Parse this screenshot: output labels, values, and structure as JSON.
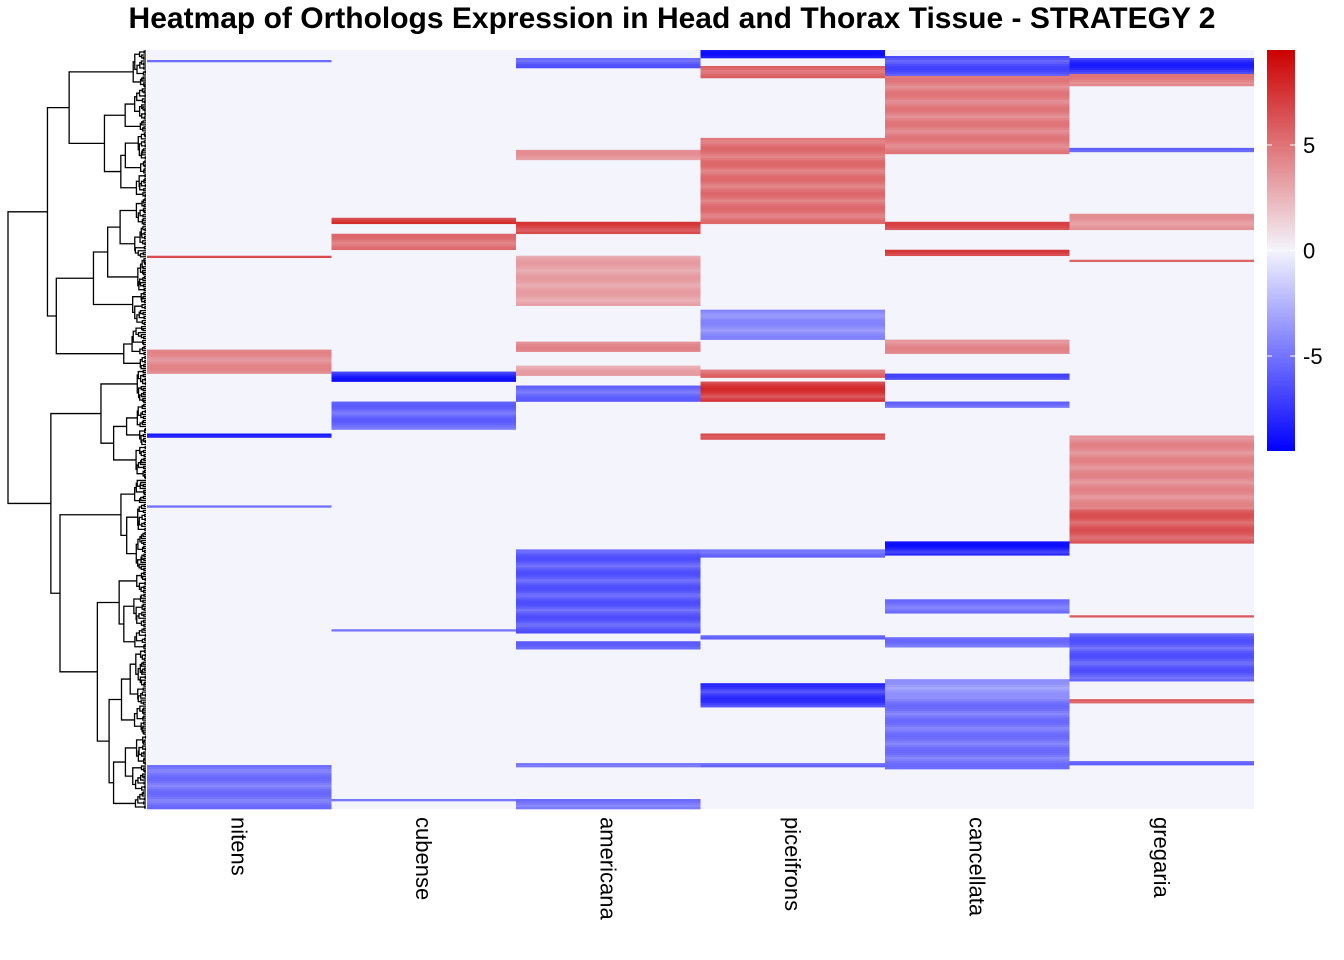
{
  "chart_data": {
    "type": "heatmap",
    "title": "Heatmap of Orthologs Expression in Head and Thorax Tissue - STRATEGY 2",
    "columns": [
      "nitens",
      "cubense",
      "americana",
      "piceifrons",
      "cancellata",
      "gregaria"
    ],
    "color_scale": {
      "min": -9.5,
      "max": 9.5,
      "ticks": [
        5,
        0,
        -5
      ],
      "tick_labels": [
        "5",
        "0",
        "-5"
      ],
      "low_color": "#0000ff",
      "mid_color": "#f4f4fc",
      "high_color": "#cc0000"
    },
    "row_dendrogram": true,
    "row_count": 380,
    "blocks": [
      {
        "column": "nitens",
        "row_start": 150,
        "row_end": 162,
        "value": 4.5
      },
      {
        "column": "nitens",
        "row_start": 358,
        "row_end": 380,
        "value": -5.5
      },
      {
        "column": "nitens",
        "row_start": 192,
        "row_end": 194,
        "value": -8.5
      },
      {
        "column": "nitens",
        "row_start": 103,
        "row_end": 104,
        "value": 7.5
      },
      {
        "column": "nitens",
        "row_start": 228,
        "row_end": 229,
        "value": -6.5
      },
      {
        "column": "nitens",
        "row_start": 5,
        "row_end": 6,
        "value": -6
      },
      {
        "column": "cubense",
        "row_start": 84,
        "row_end": 87,
        "value": 8
      },
      {
        "column": "cubense",
        "row_start": 92,
        "row_end": 100,
        "value": 5.5
      },
      {
        "column": "cubense",
        "row_start": 161,
        "row_end": 166,
        "value": -9
      },
      {
        "column": "cubense",
        "row_start": 176,
        "row_end": 190,
        "value": -6
      },
      {
        "column": "cubense",
        "row_start": 290,
        "row_end": 291,
        "value": -6
      },
      {
        "column": "cubense",
        "row_start": 375,
        "row_end": 376,
        "value": -5
      },
      {
        "column": "americana",
        "row_start": 4,
        "row_end": 9,
        "value": -6.5
      },
      {
        "column": "americana",
        "row_start": 50,
        "row_end": 55,
        "value": 4
      },
      {
        "column": "americana",
        "row_start": 86,
        "row_end": 92,
        "value": 7.5
      },
      {
        "column": "americana",
        "row_start": 103,
        "row_end": 128,
        "value": 3.5
      },
      {
        "column": "americana",
        "row_start": 146,
        "row_end": 151,
        "value": 4.5
      },
      {
        "column": "americana",
        "row_start": 158,
        "row_end": 163,
        "value": 3.5
      },
      {
        "column": "americana",
        "row_start": 168,
        "row_end": 176,
        "value": -6
      },
      {
        "column": "americana",
        "row_start": 250,
        "row_end": 292,
        "value": -6.5
      },
      {
        "column": "americana",
        "row_start": 296,
        "row_end": 300,
        "value": -6
      },
      {
        "column": "americana",
        "row_start": 357,
        "row_end": 359,
        "value": -6
      },
      {
        "column": "americana",
        "row_start": 375,
        "row_end": 380,
        "value": -5.5
      },
      {
        "column": "piceifrons",
        "row_start": 0,
        "row_end": 4,
        "value": -9
      },
      {
        "column": "piceifrons",
        "row_start": 8,
        "row_end": 14,
        "value": 6
      },
      {
        "column": "piceifrons",
        "row_start": 44,
        "row_end": 87,
        "value": 5.5
      },
      {
        "column": "piceifrons",
        "row_start": 130,
        "row_end": 145,
        "value": -4.5
      },
      {
        "column": "piceifrons",
        "row_start": 160,
        "row_end": 164,
        "value": 6
      },
      {
        "column": "piceifrons",
        "row_start": 166,
        "row_end": 176,
        "value": 8
      },
      {
        "column": "piceifrons",
        "row_start": 192,
        "row_end": 195,
        "value": 7.5
      },
      {
        "column": "piceifrons",
        "row_start": 250,
        "row_end": 254,
        "value": -6
      },
      {
        "column": "piceifrons",
        "row_start": 293,
        "row_end": 295,
        "value": -7
      },
      {
        "column": "piceifrons",
        "row_start": 317,
        "row_end": 329,
        "value": -8
      },
      {
        "column": "piceifrons",
        "row_start": 357,
        "row_end": 359,
        "value": -6
      },
      {
        "column": "cancellata",
        "row_start": 3,
        "row_end": 13,
        "value": -7
      },
      {
        "column": "cancellata",
        "row_start": 13,
        "row_end": 52,
        "value": 5
      },
      {
        "column": "cancellata",
        "row_start": 86,
        "row_end": 90,
        "value": 7
      },
      {
        "column": "cancellata",
        "row_start": 100,
        "row_end": 103,
        "value": 7.5
      },
      {
        "column": "cancellata",
        "row_start": 145,
        "row_end": 152,
        "value": 4.5
      },
      {
        "column": "cancellata",
        "row_start": 162,
        "row_end": 165,
        "value": -7
      },
      {
        "column": "cancellata",
        "row_start": 176,
        "row_end": 179,
        "value": -6
      },
      {
        "column": "cancellata",
        "row_start": 246,
        "row_end": 253,
        "value": -9
      },
      {
        "column": "cancellata",
        "row_start": 275,
        "row_end": 282,
        "value": -5.5
      },
      {
        "column": "cancellata",
        "row_start": 294,
        "row_end": 299,
        "value": -5.5
      },
      {
        "column": "cancellata",
        "row_start": 315,
        "row_end": 325,
        "value": -4
      },
      {
        "column": "cancellata",
        "row_start": 325,
        "row_end": 360,
        "value": -5.5
      },
      {
        "column": "gregaria",
        "row_start": 4,
        "row_end": 12,
        "value": -8.5
      },
      {
        "column": "gregaria",
        "row_start": 12,
        "row_end": 18,
        "value": 5
      },
      {
        "column": "gregaria",
        "row_start": 49,
        "row_end": 51,
        "value": -6
      },
      {
        "column": "gregaria",
        "row_start": 82,
        "row_end": 90,
        "value": 4
      },
      {
        "column": "gregaria",
        "row_start": 105,
        "row_end": 106,
        "value": 6
      },
      {
        "column": "gregaria",
        "row_start": 193,
        "row_end": 230,
        "value": 4.5
      },
      {
        "column": "gregaria",
        "row_start": 230,
        "row_end": 247,
        "value": 6.5
      },
      {
        "column": "gregaria",
        "row_start": 283,
        "row_end": 284,
        "value": 6
      },
      {
        "column": "gregaria",
        "row_start": 292,
        "row_end": 316,
        "value": -6.5
      },
      {
        "column": "gregaria",
        "row_start": 325,
        "row_end": 327,
        "value": 6.5
      },
      {
        "column": "gregaria",
        "row_start": 356,
        "row_end": 358,
        "value": -6
      }
    ]
  }
}
